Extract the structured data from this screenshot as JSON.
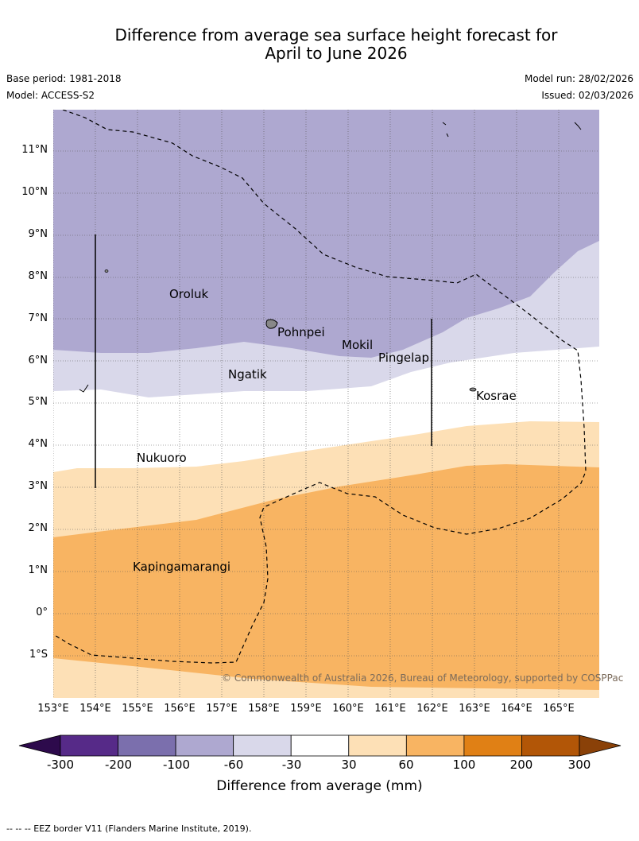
{
  "header": {
    "title_line1": "Difference from average sea surface height forecast for",
    "title_line2": "April to June 2026",
    "base_period": "Base period: 1981-2018",
    "model": "Model: ACCESS-S2",
    "model_run": "Model run: 28/02/2026",
    "issued": "Issued: 02/03/2026"
  },
  "map": {
    "latitude_labels": [
      "11°N",
      "10°N",
      "9°N",
      "8°N",
      "7°N",
      "6°N",
      "5°N",
      "4°N",
      "3°N",
      "2°N",
      "1°N",
      "0°",
      "1°S"
    ],
    "longitude_labels": [
      "153°E",
      "154°E",
      "155°E",
      "156°E",
      "157°E",
      "158°E",
      "159°E",
      "160°E",
      "161°E",
      "162°E",
      "163°E",
      "164°E",
      "165°E"
    ],
    "places": [
      {
        "name": "Oroluk"
      },
      {
        "name": "Pohnpei"
      },
      {
        "name": "Mokil"
      },
      {
        "name": "Pingelap"
      },
      {
        "name": "Ngatik"
      },
      {
        "name": "Kosrae"
      },
      {
        "name": "Nukuoro"
      },
      {
        "name": "Kapingamarangi"
      }
    ],
    "credit": "© Commonwealth of Australia 2026, Bureau of Meteorology, supported by COSPPac"
  },
  "colorbar": {
    "ticks": [
      "-300",
      "-200",
      "-100",
      "-60",
      "-30",
      "30",
      "60",
      "100",
      "200",
      "300"
    ],
    "colors": [
      "#562a88",
      "#7b6fad",
      "#aea8d0",
      "#d9d8ea",
      "#ffffff",
      "#fde0b6",
      "#f8b462",
      "#e08015",
      "#b25607"
    ],
    "under_color": "#2d0a4c",
    "over_color": "#8a4108",
    "label": "Difference from average (mm)"
  },
  "footer": {
    "eez_note": "--  --  -- EEZ border V11 (Flanders Marine Institute, 2019)."
  }
}
